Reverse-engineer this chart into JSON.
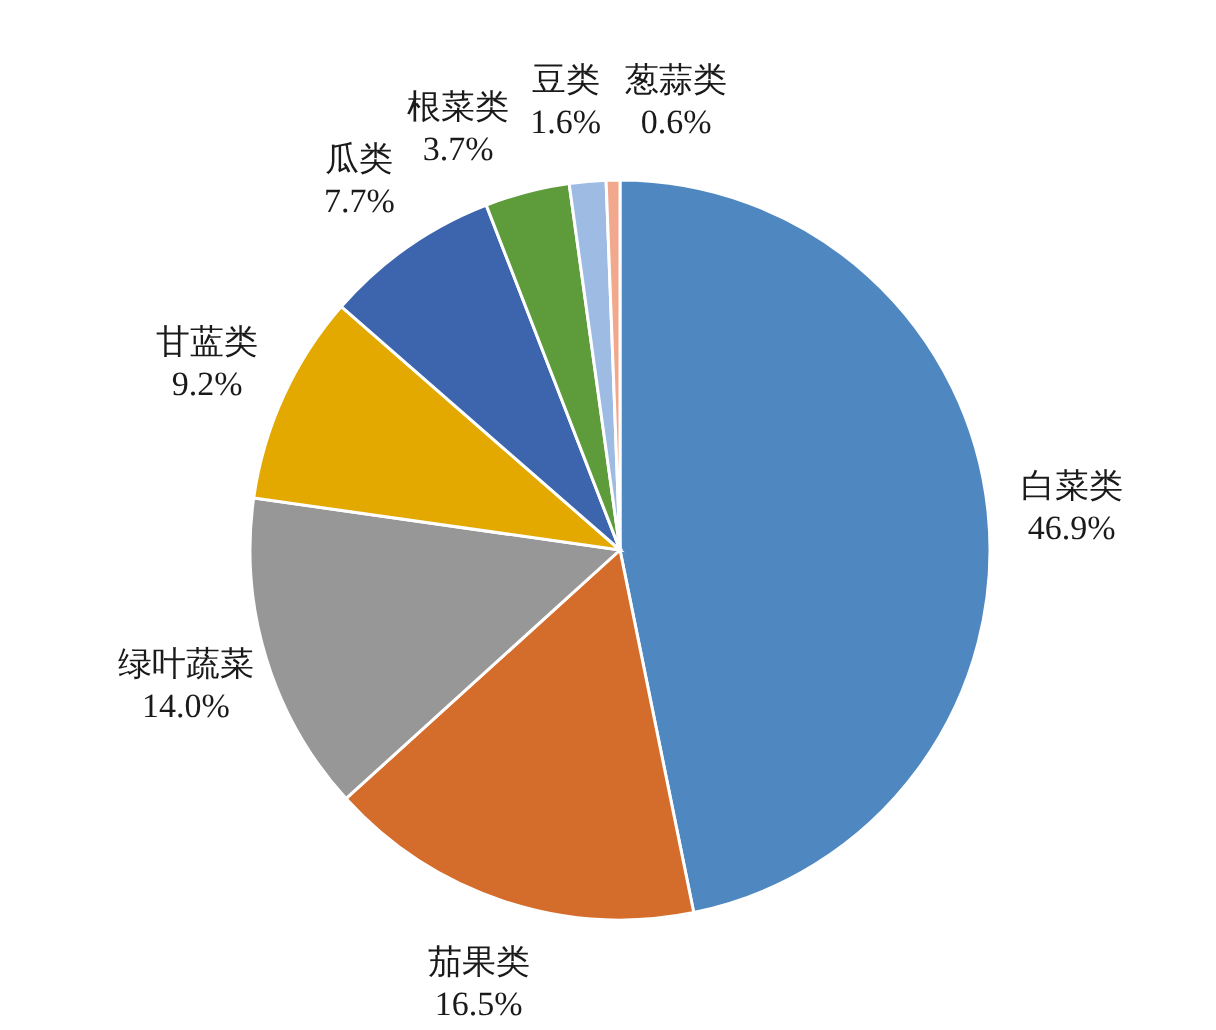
{
  "chart_data": {
    "type": "pie",
    "categories": [
      "白菜类",
      "茄果类",
      "绿叶蔬菜",
      "甘蓝类",
      "瓜类",
      "根菜类",
      "豆类",
      "葱蒜类"
    ],
    "values": [
      46.9,
      16.5,
      14.0,
      9.2,
      7.7,
      3.7,
      1.6,
      0.6
    ],
    "value_labels": [
      "46.9%",
      "16.5%",
      "14.0%",
      "9.2%",
      "7.7%",
      "3.7%",
      "1.6%",
      "0.6%"
    ],
    "colors": [
      "#4f88c0",
      "#d46c2b",
      "#979797",
      "#e3a900",
      "#3c65ae",
      "#5d9b3b",
      "#9ebce3",
      "#f2a88c"
    ]
  }
}
